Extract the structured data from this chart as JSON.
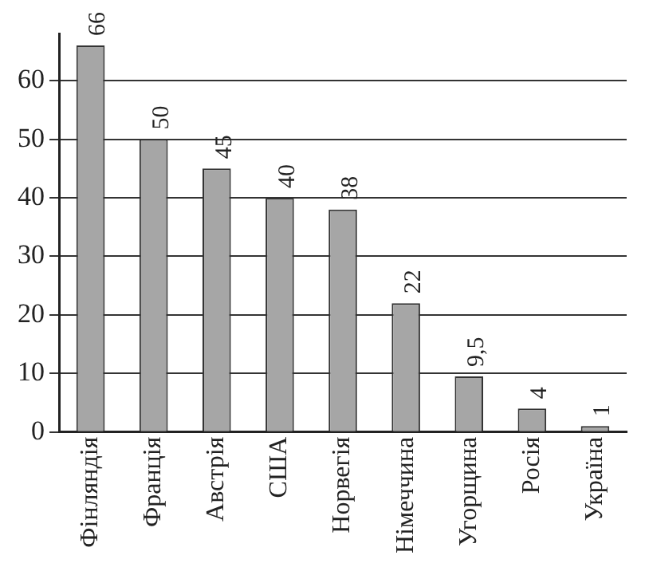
{
  "chart_data": {
    "type": "bar",
    "categories": [
      "Фінляндія",
      "Франція",
      "Австрія",
      "США",
      "Норвегія",
      "Німеччина",
      "Угорщина",
      "Росія",
      "Україна"
    ],
    "values": [
      66,
      50,
      45,
      40,
      38,
      22,
      9.5,
      4,
      1
    ],
    "value_labels": [
      "66",
      "50",
      "45",
      "40",
      "38",
      "22",
      "9,5",
      "4",
      "1"
    ],
    "color": "#a6a6a6",
    "ylim": [
      0,
      68
    ],
    "yticks": [
      0,
      10,
      20,
      30,
      40,
      50,
      60
    ],
    "grid": "y"
  }
}
